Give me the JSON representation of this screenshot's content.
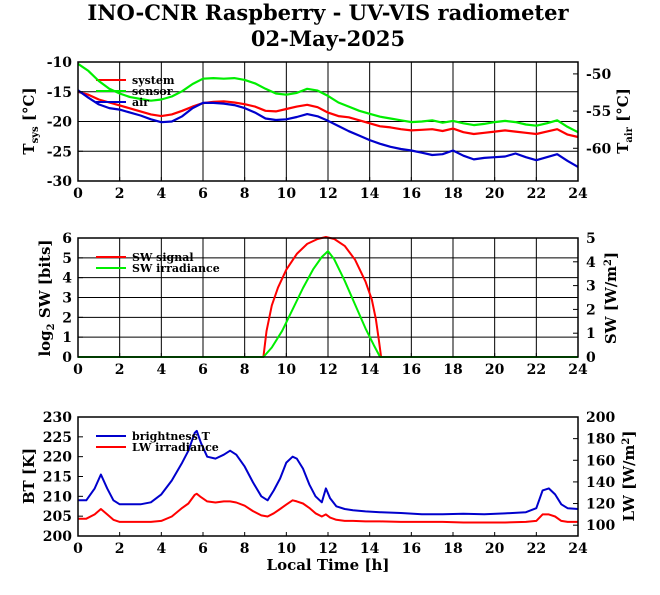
{
  "header": {
    "title": "INO-CNR Raspberry - UV-VIS radiometer",
    "date": "02-May-2025"
  },
  "colors": {
    "red": "#ff0000",
    "green": "#00ee00",
    "blue": "#0000cc",
    "black": "#000000"
  },
  "xaxis": {
    "label": "Local Time [h]",
    "ticks": [
      0,
      2,
      4,
      6,
      8,
      10,
      12,
      14,
      16,
      18,
      20,
      22,
      24
    ],
    "range": [
      0,
      24
    ]
  },
  "chart_data": [
    {
      "type": "line",
      "name": "temperature",
      "ylabel_left": "T",
      "ylabel_left_sub": "sys",
      "ylabel_left_unit": "[°C]",
      "ylabel_right": "T",
      "ylabel_right_sub": "air",
      "ylabel_right_unit": "[°C]",
      "ylim": [
        -30,
        -10
      ],
      "yticks": [
        -10,
        -15,
        -20,
        -25,
        -30
      ],
      "ylim_right": [
        -64.4,
        -48.4
      ],
      "yticks_right": [
        -50,
        -55,
        -60
      ],
      "grid": true,
      "legend_position": "top-left",
      "series": [
        {
          "name": "system",
          "color": "#ff0000",
          "axis": "left",
          "x": [
            0,
            0.5,
            1,
            1.5,
            2,
            2.5,
            3,
            3.5,
            4,
            4.5,
            5,
            5.5,
            6,
            6.5,
            7,
            7.5,
            8,
            8.5,
            9,
            9.5,
            10,
            10.5,
            11,
            11.5,
            12,
            12.5,
            13,
            13.5,
            14,
            14.5,
            15,
            15.5,
            16,
            16.5,
            17,
            17.5,
            18,
            18.5,
            19,
            19.5,
            20,
            20.5,
            21,
            21.5,
            22,
            22.5,
            23,
            23.5,
            24
          ],
          "y": [
            -15,
            -15.5,
            -16.3,
            -16.8,
            -17.3,
            -17.8,
            -18.3,
            -18.8,
            -19.1,
            -18.8,
            -18.2,
            -17.5,
            -16.9,
            -16.7,
            -16.6,
            -16.8,
            -17.1,
            -17.5,
            -18.2,
            -18.3,
            -17.9,
            -17.5,
            -17.2,
            -17.6,
            -18.5,
            -19.1,
            -19.3,
            -19.8,
            -20.3,
            -20.8,
            -21,
            -21.3,
            -21.5,
            -21.4,
            -21.3,
            -21.6,
            -21.2,
            -21.8,
            -22.1,
            -21.9,
            -21.7,
            -21.5,
            -21.7,
            -21.9,
            -22.1,
            -21.7,
            -21.3,
            -22.2,
            -22.6
          ]
        },
        {
          "name": "sensor",
          "color": "#00ee00",
          "axis": "left",
          "x": [
            0,
            0.5,
            1,
            1.5,
            2,
            2.5,
            3,
            3.5,
            4,
            4.5,
            5,
            5.5,
            6,
            6.5,
            7,
            7.5,
            8,
            8.5,
            9,
            9.5,
            10,
            10.5,
            11,
            11.5,
            12,
            12.5,
            13,
            13.5,
            14,
            14.5,
            15,
            15.5,
            16,
            16.5,
            17,
            17.5,
            18,
            18.5,
            19,
            19.5,
            20,
            20.5,
            21,
            21.5,
            22,
            22.5,
            23,
            23.5,
            24
          ],
          "y": [
            -10.3,
            -11.5,
            -13.2,
            -14.5,
            -15.3,
            -15.9,
            -16.2,
            -16.5,
            -16.3,
            -15.8,
            -14.9,
            -13.7,
            -12.8,
            -12.7,
            -12.8,
            -12.7,
            -13,
            -13.6,
            -14.5,
            -15.3,
            -15.5,
            -15.2,
            -14.5,
            -14.8,
            -15.7,
            -16.8,
            -17.5,
            -18.2,
            -18.7,
            -19.2,
            -19.5,
            -19.8,
            -20.1,
            -20,
            -19.8,
            -20.2,
            -19.9,
            -20.3,
            -20.6,
            -20.4,
            -20.1,
            -19.9,
            -20.1,
            -20.5,
            -20.7,
            -20.3,
            -19.8,
            -20.9,
            -21.8
          ]
        },
        {
          "name": "air",
          "color": "#0000cc",
          "axis": "right",
          "x": [
            0,
            0.5,
            1,
            1.5,
            2,
            2.5,
            3,
            3.5,
            4,
            4.5,
            5,
            5.5,
            6,
            6.5,
            7,
            7.5,
            8,
            8.5,
            9,
            9.5,
            10,
            10.5,
            11,
            11.5,
            12,
            12.5,
            13,
            13.5,
            14,
            14.5,
            15,
            15.5,
            16,
            16.5,
            17,
            17.5,
            18,
            18.5,
            19,
            19.5,
            20,
            20.5,
            21,
            21.5,
            22,
            22.5,
            23,
            23.5,
            24
          ],
          "y": [
            -52.2,
            -53.2,
            -54.1,
            -54.6,
            -54.8,
            -55.2,
            -55.6,
            -56.1,
            -56.5,
            -56.4,
            -55.7,
            -54.6,
            -53.9,
            -53.9,
            -54,
            -54.2,
            -54.6,
            -55.2,
            -56,
            -56.2,
            -56.1,
            -55.8,
            -55.4,
            -55.7,
            -56.3,
            -57,
            -57.7,
            -58.3,
            -58.9,
            -59.4,
            -59.8,
            -60.1,
            -60.3,
            -60.6,
            -60.9,
            -60.8,
            -60.3,
            -61,
            -61.5,
            -61.3,
            -61.2,
            -61.1,
            -60.7,
            -61.2,
            -61.6,
            -61.2,
            -60.8,
            -61.7,
            -62.5
          ]
        }
      ]
    },
    {
      "type": "line",
      "name": "shortwave",
      "ylabel_left": "log",
      "ylabel_left_sub": "2",
      "ylabel_left_unit": "SW [bits]",
      "ylabel_right": "SW [W/m",
      "ylabel_right_sup": "2",
      "ylabel_right_end": "]",
      "ylim": [
        0,
        6
      ],
      "yticks": [
        0,
        1,
        2,
        3,
        4,
        5,
        6
      ],
      "ylim_right": [
        0,
        5
      ],
      "yticks_right": [
        0,
        1,
        2,
        3,
        4,
        5
      ],
      "grid": true,
      "legend_position": "top-left",
      "series": [
        {
          "name": "SW signal",
          "color": "#ff0000",
          "axis": "left",
          "x": [
            0,
            8.9,
            9.05,
            9.3,
            9.6,
            10,
            10.5,
            11,
            11.5,
            11.9,
            12.3,
            12.8,
            13.3,
            13.8,
            14.1,
            14.3,
            14.45,
            14.55,
            24
          ],
          "y": [
            0,
            0,
            1.3,
            2.6,
            3.5,
            4.4,
            5.2,
            5.7,
            5.95,
            6.05,
            5.95,
            5.6,
            4.9,
            3.8,
            2.9,
            1.9,
            0.8,
            0,
            0
          ]
        },
        {
          "name": "SW irradiance",
          "color": "#00ee00",
          "axis": "right",
          "x": [
            0,
            8.9,
            9.3,
            9.8,
            10.3,
            10.8,
            11.3,
            11.7,
            12,
            12.3,
            12.8,
            13.3,
            13.8,
            14.2,
            14.5,
            24
          ],
          "y": [
            0,
            0,
            0.4,
            1.1,
            2,
            2.9,
            3.7,
            4.2,
            4.45,
            4.1,
            3.2,
            2.2,
            1.2,
            0.5,
            0,
            0
          ]
        }
      ]
    },
    {
      "type": "line",
      "name": "longwave",
      "ylabel_left": "BT [K]",
      "ylabel_right": "LW [W/m",
      "ylabel_right_sup": "2",
      "ylabel_right_end": "]",
      "ylim": [
        200,
        230
      ],
      "yticks": [
        200,
        205,
        210,
        215,
        220,
        225,
        230
      ],
      "ylim_right": [
        90,
        200
      ],
      "yticks_right": [
        100,
        120,
        140,
        160,
        180,
        200
      ],
      "grid": false,
      "legend_position": "top-left",
      "series": [
        {
          "name": "brightness T",
          "color": "#0000cc",
          "axis": "left",
          "x": [
            0,
            0.4,
            0.8,
            1.1,
            1.4,
            1.7,
            2,
            2.5,
            3,
            3.5,
            4,
            4.5,
            5,
            5.3,
            5.6,
            5.7,
            5.9,
            6.2,
            6.6,
            7,
            7.3,
            7.6,
            8,
            8.4,
            8.8,
            9.1,
            9.4,
            9.7,
            10,
            10.3,
            10.5,
            10.8,
            11.1,
            11.4,
            11.7,
            11.9,
            12.1,
            12.4,
            12.8,
            13.2,
            13.8,
            14.5,
            15.5,
            16.5,
            17.5,
            18.5,
            19.5,
            20.5,
            21.5,
            22,
            22.3,
            22.6,
            22.9,
            23.2,
            23.5,
            24
          ],
          "y": [
            209,
            209,
            212,
            215.5,
            212,
            209,
            208,
            208,
            208,
            208.5,
            210.5,
            214,
            218.5,
            221.5,
            226,
            226.5,
            223.5,
            220,
            219.5,
            220.5,
            221.5,
            220.5,
            217.5,
            213.5,
            210,
            209,
            211.5,
            214.5,
            218.5,
            220,
            219.5,
            217,
            213,
            210,
            208.5,
            212,
            209.5,
            207.5,
            206.8,
            206.5,
            206.2,
            206,
            205.8,
            205.5,
            205.5,
            205.6,
            205.5,
            205.7,
            206,
            207,
            211.5,
            212,
            210.5,
            208,
            207,
            206.8
          ]
        },
        {
          "name": "LW irradiance",
          "color": "#ff0000",
          "axis": "right",
          "x": [
            0,
            0.4,
            0.8,
            1.1,
            1.4,
            1.7,
            2,
            2.5,
            3,
            3.5,
            4,
            4.5,
            5,
            5.3,
            5.6,
            5.7,
            5.9,
            6.2,
            6.6,
            7,
            7.3,
            7.6,
            8,
            8.4,
            8.8,
            9.1,
            9.4,
            9.7,
            10,
            10.3,
            10.5,
            10.8,
            11.1,
            11.4,
            11.7,
            11.9,
            12.1,
            12.4,
            12.8,
            13.2,
            13.8,
            14.5,
            15.5,
            16.5,
            17.5,
            18.5,
            19.5,
            20.5,
            21.5,
            22,
            22.3,
            22.6,
            22.9,
            23.2,
            23.5,
            24
          ],
          "y": [
            106,
            106,
            110,
            115,
            110,
            105,
            103,
            103,
            103,
            103,
            104,
            108,
            116,
            120,
            128,
            129,
            126,
            122,
            121,
            122,
            122,
            121,
            118,
            113,
            109,
            108,
            111,
            115,
            119,
            123,
            122,
            120,
            116,
            111,
            108,
            110,
            107,
            105,
            104,
            104,
            103.5,
            103.5,
            103,
            103,
            103,
            102.5,
            102.5,
            102.5,
            103,
            104,
            110,
            110,
            108,
            104,
            103,
            103
          ]
        }
      ]
    }
  ]
}
